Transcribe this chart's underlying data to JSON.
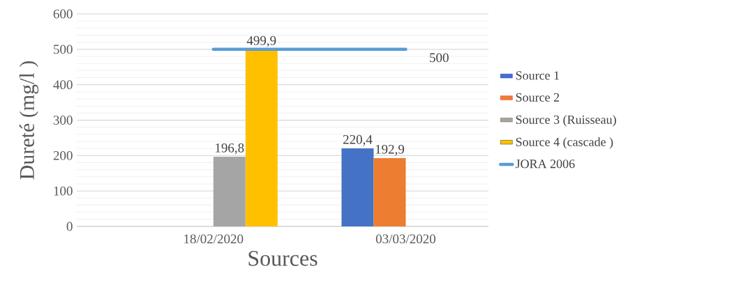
{
  "chart_data": {
    "type": "bar",
    "xlabel": "Sources",
    "ylabel": "Dureté (mg/l )",
    "categories": [
      "18/02/2020",
      "03/03/2020"
    ],
    "series": [
      {
        "name": "Source 1",
        "color": "#4472c4",
        "values": [
          null,
          220.4
        ],
        "value_labels": [
          null,
          "220,4"
        ]
      },
      {
        "name": "Source 2",
        "color": "#ed7d31",
        "values": [
          null,
          192.9
        ],
        "value_labels": [
          null,
          "192,9"
        ]
      },
      {
        "name": "Source 3 (Ruisseau)",
        "color": "#a5a5a5",
        "values": [
          196.8,
          null
        ],
        "value_labels": [
          "196,8",
          null
        ]
      },
      {
        "name": "Source 4 (cascade )",
        "color": "#ffc000",
        "values": [
          499.9,
          null
        ],
        "value_labels": [
          "499,9",
          null
        ]
      },
      {
        "name": "JORA 2006",
        "type": "line",
        "color": "#5b9bd5",
        "values": [
          500,
          500
        ],
        "value_labels": [
          null,
          "500"
        ]
      }
    ],
    "ylim": [
      0,
      600
    ],
    "yticks": [
      0,
      100,
      200,
      300,
      400,
      500,
      600
    ],
    "grid": "y",
    "legend": "right"
  }
}
